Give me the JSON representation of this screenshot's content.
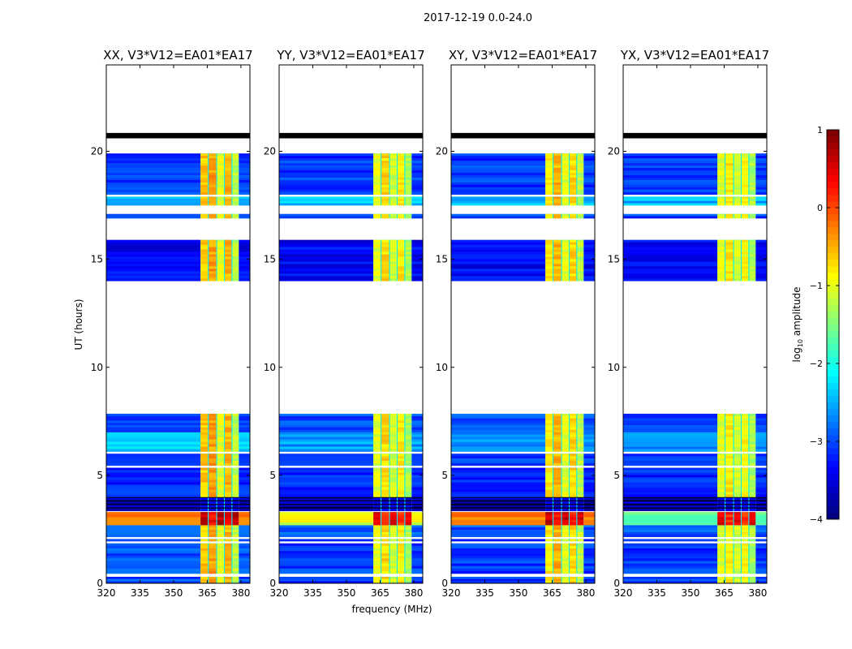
{
  "chart_data": {
    "type": "heatmap",
    "suptitle": "2017-12-19 0.0-24.0",
    "xlabel": "frequency (MHz)",
    "ylabel": "UT (hours)",
    "xlim": [
      320,
      384
    ],
    "ylim": [
      0,
      24
    ],
    "xticks": [
      320,
      335,
      350,
      365,
      380
    ],
    "yticks": [
      0,
      5,
      10,
      15,
      20
    ],
    "flag_band_hours": [
      20.6,
      20.85
    ],
    "rfi_band_mhz": [
      362,
      379
    ],
    "rfi_subbands_mhz": [
      [
        362,
        365.2
      ],
      [
        365.6,
        369
      ],
      [
        369.4,
        372.4
      ],
      [
        372.8,
        375.8
      ],
      [
        376.2,
        379
      ]
    ],
    "segments_hours": [
      [
        0,
        0.3
      ],
      [
        0.45,
        1.85
      ],
      [
        1.95,
        2.05
      ],
      [
        2.15,
        2.7
      ],
      [
        2.7,
        3.3
      ],
      [
        3.35,
        4.0
      ],
      [
        4.0,
        5.35
      ],
      [
        5.45,
        6.0
      ],
      [
        6.1,
        7.0
      ],
      [
        7.0,
        7.85
      ],
      [
        14.0,
        15.9
      ],
      [
        16.9,
        17.1
      ],
      [
        17.5,
        17.9
      ],
      [
        18.0,
        19.9
      ]
    ],
    "panels": [
      {
        "title": "XX, V3*V12=EA01*EA17",
        "background_log10": [
          -3.0,
          -3.0,
          -3.1,
          -3.0,
          -0.2,
          -3.7,
          -3.2,
          -3.1,
          -2.4,
          -3.0,
          -3.4,
          -3.1,
          -2.4,
          -3.1
        ],
        "rfi_log10": [
          -0.6,
          -0.4,
          -1.0,
          -0.5,
          -1.2
        ],
        "rfi_peak_log10": 0.7
      },
      {
        "title": "YY, V3*V12=EA01*EA17",
        "background_log10": [
          -3.1,
          -3.1,
          -3.2,
          -3.0,
          -1.0,
          -3.7,
          -3.2,
          -3.1,
          -2.6,
          -3.0,
          -3.4,
          -3.1,
          -2.4,
          -3.1
        ],
        "rfi_log10": [
          -1.0,
          -0.7,
          -1.1,
          -0.8,
          -1.3
        ],
        "rfi_peak_log10": 0.5
      },
      {
        "title": "XY, V3*V12=EA01*EA17",
        "background_log10": [
          -3.1,
          -3.1,
          -3.2,
          -3.0,
          -0.3,
          -3.7,
          -3.2,
          -3.1,
          -2.6,
          -3.0,
          -3.4,
          -3.1,
          -2.5,
          -3.1
        ],
        "rfi_log10": [
          -0.8,
          -0.5,
          -1.0,
          -0.7,
          -1.2
        ],
        "rfi_peak_log10": 0.6
      },
      {
        "title": "YX, V3*V12=EA01*EA17",
        "background_log10": [
          -3.1,
          -3.1,
          -3.2,
          -3.0,
          -1.6,
          -3.7,
          -3.2,
          -3.1,
          -2.6,
          -3.0,
          -3.4,
          -3.1,
          -2.5,
          -3.1
        ],
        "rfi_log10": [
          -1.0,
          -0.8,
          -1.1,
          -0.9,
          -1.3
        ],
        "rfi_peak_log10": 0.5
      }
    ],
    "colorbar": {
      "label": "log10 amplitude",
      "label_base": "log",
      "label_sub": "10",
      "label_rest": " amplitude",
      "range": [
        -4,
        1
      ],
      "ticks": [
        -4,
        -3,
        -2,
        -1,
        0,
        1
      ],
      "colormap": "jet"
    }
  }
}
